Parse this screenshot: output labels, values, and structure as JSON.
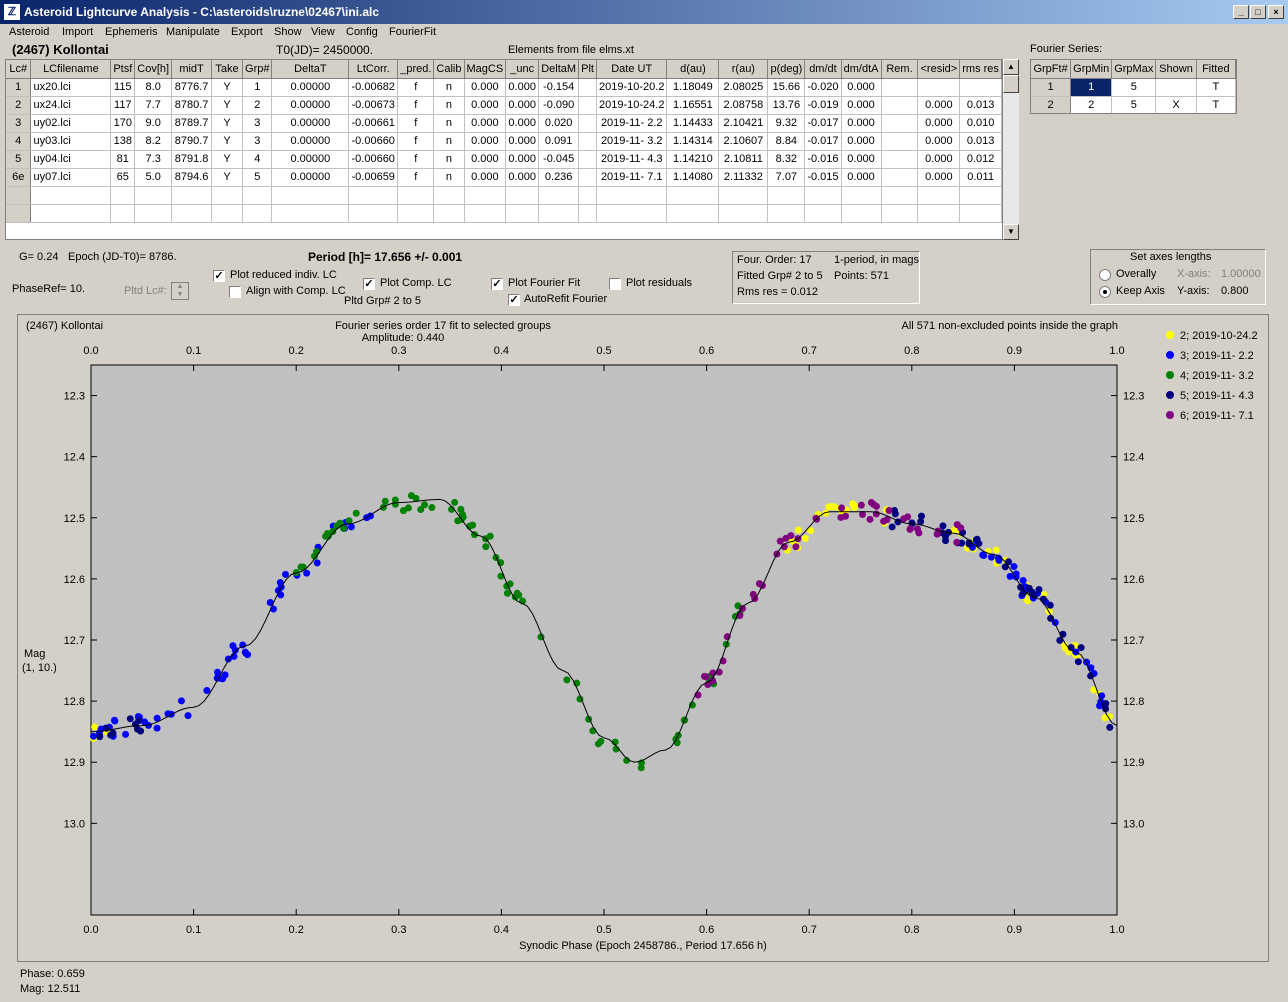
{
  "window": {
    "title": "Asteroid Lightcurve Analysis - C:\\asteroids\\ruzne\\02467\\ini.alc",
    "icon": "app-icon",
    "min": "_",
    "max": "□",
    "close": "×"
  },
  "menu": [
    "Asteroid",
    "Import",
    "Ephemeris",
    "Manipulate",
    "Export",
    "Show",
    "View",
    "Config",
    "FourierFit"
  ],
  "header": {
    "asteroid": "(2467) Kollontai",
    "t0": "T0(JD)= 2450000.",
    "elements": "Elements from file elms.xt",
    "fourier_label": "Fourier Series:"
  },
  "lc_table": {
    "columns": [
      "Lc#",
      "LCfilename",
      "Ptsf",
      "Cov[h]",
      "midT",
      "Take",
      "Grp#",
      "DeltaT",
      "LtCorr.",
      "_pred.",
      "Calib",
      "MagCS",
      "_unc",
      "DeltaM",
      "Plt",
      "Date UT",
      "d(au)",
      "r(au)",
      "p(deg)",
      "dm/dt",
      "dm/dtA",
      "Rem.",
      "<resid>",
      "rms res"
    ],
    "rows": [
      [
        "1",
        "ux20.lci",
        "115",
        "8.0",
        "8776.7",
        "Y",
        "1",
        "0.00000",
        "-0.00682",
        "f",
        "n",
        "0.000",
        "0.000",
        "-0.154",
        "",
        "2019-10-20.2",
        "1.18049",
        "2.08025",
        "15.66",
        "-0.020",
        "0.000",
        "",
        "",
        ""
      ],
      [
        "2",
        "ux24.lci",
        "117",
        "7.7",
        "8780.7",
        "Y",
        "2",
        "0.00000",
        "-0.00673",
        "f",
        "n",
        "0.000",
        "0.000",
        "-0.090",
        "",
        "2019-10-24.2",
        "1.16551",
        "2.08758",
        "13.76",
        "-0.019",
        "0.000",
        "",
        "0.000",
        "0.013"
      ],
      [
        "3",
        "uy02.lci",
        "170",
        "9.0",
        "8789.7",
        "Y",
        "3",
        "0.00000",
        "-0.00661",
        "f",
        "n",
        "0.000",
        "0.000",
        "0.020",
        "",
        "2019-11- 2.2",
        "1.14433",
        "2.10421",
        "9.32",
        "-0.017",
        "0.000",
        "",
        "0.000",
        "0.010"
      ],
      [
        "4",
        "uy03.lci",
        "138",
        "8.2",
        "8790.7",
        "Y",
        "3",
        "0.00000",
        "-0.00660",
        "f",
        "n",
        "0.000",
        "0.000",
        "0.091",
        "",
        "2019-11- 3.2",
        "1.14314",
        "2.10607",
        "8.84",
        "-0.017",
        "0.000",
        "",
        "0.000",
        "0.013"
      ],
      [
        "5",
        "uy04.lci",
        "81",
        "7.3",
        "8791.8",
        "Y",
        "4",
        "0.00000",
        "-0.00660",
        "f",
        "n",
        "0.000",
        "0.000",
        "-0.045",
        "",
        "2019-11- 4.3",
        "1.14210",
        "2.10811",
        "8.32",
        "-0.016",
        "0.000",
        "",
        "0.000",
        "0.012"
      ],
      [
        "6e",
        "uy07.lci",
        "65",
        "5.0",
        "8794.6",
        "Y",
        "5",
        "0.00000",
        "-0.00659",
        "f",
        "n",
        "0.000",
        "0.000",
        "0.236",
        "",
        "2019-11- 7.1",
        "1.14080",
        "2.11332",
        "7.07",
        "-0.015",
        "0.000",
        "",
        "0.000",
        "0.011"
      ]
    ]
  },
  "fourier_table": {
    "columns": [
      "GrpFt#",
      "GrpMin",
      "GrpMax",
      "Shown",
      "Fitted"
    ],
    "rows": [
      [
        "1",
        "1",
        "5",
        "",
        "T"
      ],
      [
        "2",
        "2",
        "5",
        "X",
        "T"
      ]
    ]
  },
  "controls": {
    "g": "G= 0.24",
    "epoch": "Epoch (JD-T0)= 8786.",
    "period": "Period [h]= 17.656 +/- 0.001",
    "phaseref": "PhaseRef= 10.",
    "pltd_lc": "Pltd Lc#:",
    "plot_reduced": "Plot reduced indiv. LC",
    "align_comp": "Align with Comp. LC",
    "plot_comp": "Plot Comp. LC",
    "pltd_grp": "Pltd Grp#  2   to   5",
    "plot_fourier": "Plot Fourier Fit",
    "autorefit": "AutoRefit Fourier",
    "plot_resid": "Plot residuals",
    "four_order": "Four. Order: 17",
    "one_period": "1-period, in mags",
    "fitted_grp": "Fitted Grp# 2 to 5",
    "points": "Points: 571",
    "rms": "Rms res      = 0.012",
    "axes_title": "Set axes lengths",
    "overally": "Overally",
    "keep_axis": "Keep Axis",
    "xaxis_label": "X-axis:",
    "xaxis_val": "1.00000",
    "yaxis_label": "Y-axis:",
    "yaxis_val": "0.800",
    "checks": {
      "plot_reduced": true,
      "align_comp": false,
      "plot_comp": true,
      "plot_fourier": true,
      "autorefit": true,
      "plot_resid": false
    }
  },
  "chart_data": {
    "type": "scatter",
    "title_left": "(2467) Kollontai",
    "title_center": "Fourier series order 17 fit to selected groups",
    "amplitude": "Amplitude: 0.440",
    "title_right": "All 571 non-excluded points inside the graph",
    "xlabel": "Synodic Phase (Epoch 2458786., Period 17.656 h)",
    "ylabel": [
      "Mag",
      "(1, 10.)"
    ],
    "xlim": [
      0,
      1
    ],
    "ylim": [
      13.15,
      12.25
    ],
    "xticks": [
      "0.0",
      "0.1",
      "0.2",
      "0.3",
      "0.4",
      "0.5",
      "0.6",
      "0.7",
      "0.8",
      "0.9",
      "1.0"
    ],
    "yticks": [
      "12.3",
      "12.4",
      "12.5",
      "12.6",
      "12.7",
      "12.8",
      "12.9",
      "13.0"
    ],
    "series": [
      {
        "name": "2; 2019-10-24.2",
        "color": "#ffff00",
        "ranges": [
          [
            0.0,
            0.03
          ],
          [
            0.67,
            0.78
          ],
          [
            0.84,
            1.0
          ]
        ]
      },
      {
        "name": "3; 2019-11- 2.2",
        "color": "#0000ff",
        "ranges": [
          [
            0.0,
            0.28
          ],
          [
            0.85,
            1.0
          ]
        ]
      },
      {
        "name": "4; 2019-11- 3.2",
        "color": "#008000",
        "ranges": [
          [
            0.2,
            0.55
          ],
          [
            0.57,
            0.65
          ]
        ]
      },
      {
        "name": "5; 2019-11- 4.3",
        "color": "#000080",
        "ranges": [
          [
            0.0,
            0.05
          ],
          [
            0.78,
            1.0
          ]
        ]
      },
      {
        "name": "6; 2019-11- 7.1",
        "color": "#800080",
        "ranges": [
          [
            0.58,
            0.85
          ]
        ]
      }
    ],
    "fit_curve": {
      "x": [
        0.0,
        0.05,
        0.1,
        0.15,
        0.2,
        0.25,
        0.3,
        0.34,
        0.38,
        0.42,
        0.46,
        0.5,
        0.53,
        0.56,
        0.6,
        0.64,
        0.68,
        0.72,
        0.76,
        0.8,
        0.84,
        0.88,
        0.92,
        0.96,
        1.0
      ],
      "y": [
        12.85,
        12.84,
        12.81,
        12.71,
        12.59,
        12.51,
        12.475,
        12.47,
        12.53,
        12.64,
        12.75,
        12.86,
        12.9,
        12.88,
        12.77,
        12.64,
        12.54,
        12.49,
        12.49,
        12.51,
        12.525,
        12.56,
        12.63,
        12.72,
        12.84
      ]
    }
  },
  "status": {
    "phase": "Phase:  0.659",
    "mag": "Mag:   12.511"
  }
}
